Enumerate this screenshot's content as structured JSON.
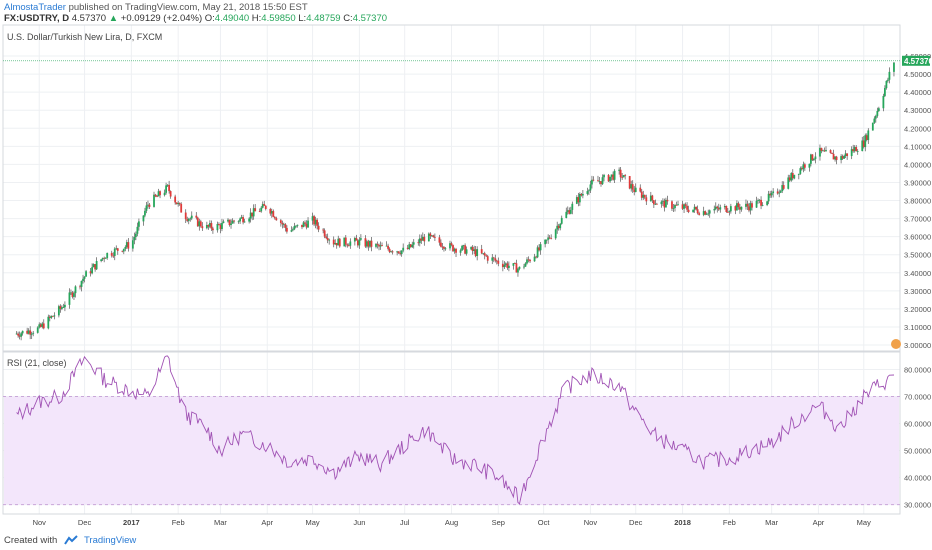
{
  "header": {
    "author": "AlmostaTrader",
    "published_text": " published on TradingView.com, May 21, 2018 15:50 EST",
    "symbol": "FX:USDTRY, D",
    "last": "4.57370",
    "change": "+0.09129 (+2.04%)",
    "open_label": "O:",
    "open": "4.49040",
    "high_label": "H:",
    "high": "4.59850",
    "low_label": "L:",
    "low": "4.48759",
    "close_label": "C:",
    "close": "4.57370"
  },
  "footer": {
    "created_with": "Created with",
    "brand": "TradingView"
  },
  "colors": {
    "up": "#26a65b",
    "down": "#e03a3a",
    "rsi_line": "#a052b4",
    "rsi_band": "#f3e6fb",
    "grid": "#eef0f3",
    "last_price_box": "#26a65b"
  },
  "chart_data": [
    {
      "type": "candlestick",
      "title": "U.S. Dollar/Turkish New Lira, D, FXCM",
      "ylim": [
        3.0,
        4.65
      ],
      "yticks": [
        "3.00000",
        "3.10000",
        "3.20000",
        "3.30000",
        "3.40000",
        "3.50000",
        "3.60000",
        "3.70000",
        "3.80000",
        "3.90000",
        "4.00000",
        "4.10000",
        "4.20000",
        "4.30000",
        "4.40000",
        "4.50000",
        "4.60000"
      ],
      "last_price_label": "4.57370",
      "x_labels": [
        "Nov",
        "Dec",
        "2017",
        "Feb",
        "Mar",
        "Apr",
        "May",
        "Jun",
        "Jul",
        "Aug",
        "Sep",
        "Oct",
        "Nov",
        "Dec",
        "2018",
        "Feb",
        "Mar",
        "Apr",
        "May"
      ],
      "x": [
        "2016-10-15",
        "2016-11-01",
        "2016-11-15",
        "2016-12-01",
        "2016-12-15",
        "2017-01-01",
        "2017-01-12",
        "2017-01-25",
        "2017-02-05",
        "2017-02-20",
        "2017-03-01",
        "2017-03-15",
        "2017-04-01",
        "2017-04-15",
        "2017-05-01",
        "2017-05-15",
        "2017-06-01",
        "2017-06-15",
        "2017-07-01",
        "2017-07-15",
        "2017-08-01",
        "2017-08-15",
        "2017-09-01",
        "2017-09-15",
        "2017-10-01",
        "2017-10-15",
        "2017-11-01",
        "2017-11-20",
        "2017-12-01",
        "2017-12-15",
        "2018-01-01",
        "2018-01-15",
        "2018-02-01",
        "2018-02-15",
        "2018-03-01",
        "2018-03-15",
        "2018-04-01",
        "2018-04-15",
        "2018-05-01",
        "2018-05-10",
        "2018-05-21"
      ],
      "values": [
        3.06,
        3.09,
        3.2,
        3.38,
        3.5,
        3.56,
        3.78,
        3.87,
        3.72,
        3.65,
        3.66,
        3.7,
        3.77,
        3.63,
        3.69,
        3.57,
        3.57,
        3.54,
        3.52,
        3.6,
        3.54,
        3.52,
        3.46,
        3.42,
        3.55,
        3.72,
        3.89,
        3.95,
        3.85,
        3.79,
        3.76,
        3.74,
        3.76,
        3.77,
        3.82,
        3.94,
        4.07,
        4.03,
        4.12,
        4.3,
        4.57
      ]
    },
    {
      "type": "line",
      "title": "RSI (21, close)",
      "ylim": [
        28,
        85
      ],
      "yticks": [
        "30.0000",
        "40.0000",
        "50.0000",
        "60.0000",
        "70.0000",
        "80.0000"
      ],
      "band": [
        30,
        70
      ],
      "x_labels": [
        "Nov",
        "Dec",
        "2017",
        "Feb",
        "Mar",
        "Apr",
        "May",
        "Jun",
        "Jul",
        "Aug",
        "Sep",
        "Oct",
        "Nov",
        "Dec",
        "2018",
        "Feb",
        "Mar",
        "Apr",
        "May"
      ],
      "x": [
        "2016-10-15",
        "2016-11-01",
        "2016-11-15",
        "2016-12-01",
        "2016-12-15",
        "2017-01-01",
        "2017-01-12",
        "2017-01-25",
        "2017-02-05",
        "2017-02-20",
        "2017-03-01",
        "2017-03-15",
        "2017-04-01",
        "2017-04-15",
        "2017-05-01",
        "2017-05-15",
        "2017-06-01",
        "2017-06-15",
        "2017-07-01",
        "2017-07-15",
        "2017-08-01",
        "2017-08-15",
        "2017-09-01",
        "2017-09-15",
        "2017-10-01",
        "2017-10-15",
        "2017-11-01",
        "2017-11-20",
        "2017-12-01",
        "2017-12-15",
        "2018-01-01",
        "2018-01-15",
        "2018-02-01",
        "2018-02-15",
        "2018-03-01",
        "2018-03-15",
        "2018-04-01",
        "2018-04-15",
        "2018-05-01",
        "2018-05-10",
        "2018-05-21"
      ],
      "values": [
        62,
        68,
        70,
        84,
        76,
        72,
        70,
        85,
        64,
        58,
        50,
        56,
        52,
        46,
        47,
        42,
        48,
        45,
        52,
        58,
        47,
        45,
        40,
        32,
        55,
        73,
        78,
        74,
        64,
        55,
        50,
        46,
        47,
        50,
        53,
        60,
        67,
        58,
        70,
        74,
        77
      ]
    }
  ]
}
